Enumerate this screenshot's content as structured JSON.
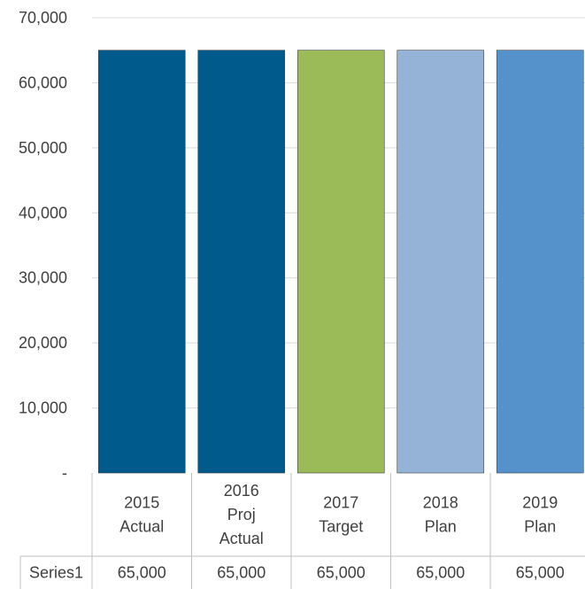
{
  "chart_data": {
    "type": "bar",
    "categories": [
      [
        "2015",
        "Actual"
      ],
      [
        "2016",
        "Proj",
        "Actual"
      ],
      [
        "2017",
        "Target"
      ],
      [
        "2018",
        "Plan"
      ],
      [
        "2019",
        "Plan"
      ]
    ],
    "series": [
      {
        "name": "Series1",
        "values": [
          65000,
          65000,
          65000,
          65000,
          65000
        ],
        "value_labels": [
          "65,000",
          "65,000",
          "65,000",
          "65,000",
          "65,000"
        ],
        "colors": [
          "#005A8C",
          "#005A8C",
          "#9BBB59",
          "#95B3D7",
          "#5592CB"
        ]
      }
    ],
    "yticks": [
      {
        "value": 0,
        "label": "-"
      },
      {
        "value": 10000,
        "label": "10,000"
      },
      {
        "value": 20000,
        "label": "20,000"
      },
      {
        "value": 30000,
        "label": "30,000"
      },
      {
        "value": 40000,
        "label": "40,000"
      },
      {
        "value": 50000,
        "label": "50,000"
      },
      {
        "value": 60000,
        "label": "60,000"
      },
      {
        "value": 70000,
        "label": "70,000"
      }
    ],
    "ylim": [
      0,
      70000
    ],
    "grid": true,
    "data_table": true,
    "title": "",
    "xlabel": "",
    "ylabel": ""
  }
}
